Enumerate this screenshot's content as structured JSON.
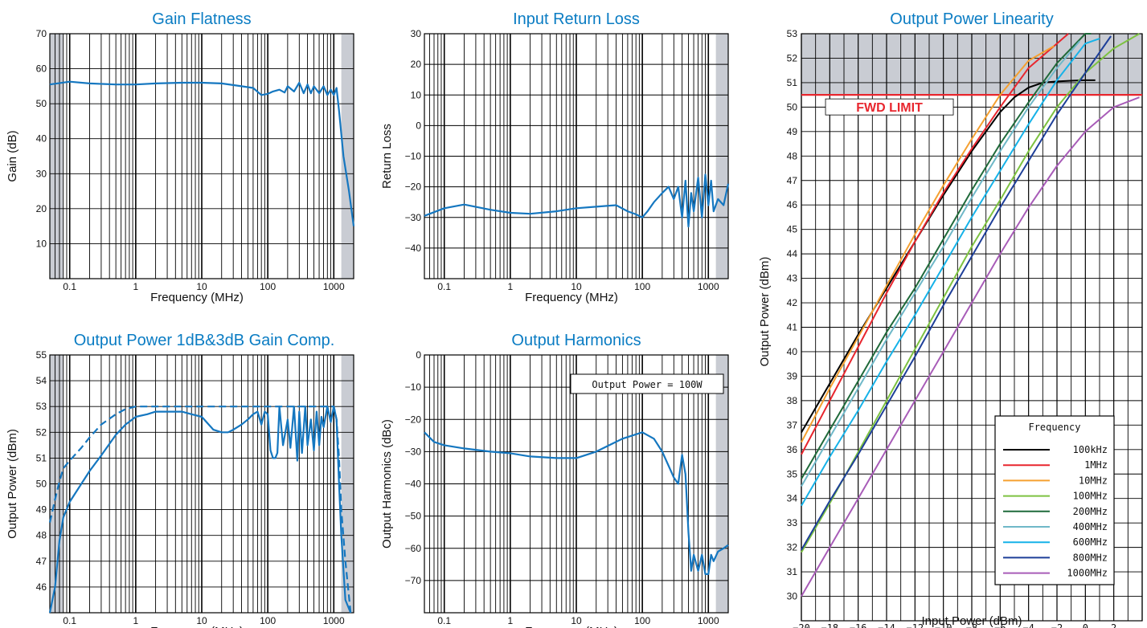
{
  "charts": [
    {
      "title": "Gain Flatness",
      "xlabel": "Frequency (MHz)",
      "ylabel": "Gain (dB)",
      "x_ticks": [
        "0.1",
        "1",
        "10",
        "100",
        "1000"
      ],
      "y_ticks": [
        "10",
        "20",
        "30",
        "40",
        "50",
        "60",
        "70"
      ]
    },
    {
      "title": "Input Return Loss",
      "xlabel": "Frequency (MHz)",
      "ylabel": "Return Loss",
      "x_ticks": [
        "0.1",
        "1",
        "10",
        "100",
        "1000"
      ],
      "y_ticks": [
        "30",
        "20",
        "10",
        "0",
        "−10",
        "−20",
        "−30",
        "−40"
      ]
    },
    {
      "title": "Output Power Linearity",
      "xlabel": "Input Power (dBm)",
      "ylabel": "Output Power (dBm)",
      "x_ticks": [
        "−20",
        "−18",
        "−16",
        "−14",
        "−12",
        "−10",
        "−8",
        "−6",
        "−4",
        "−2",
        "0",
        "2"
      ],
      "y_ticks": [
        "30",
        "31",
        "32",
        "33",
        "34",
        "35",
        "36",
        "37",
        "38",
        "39",
        "40",
        "41",
        "42",
        "43",
        "44",
        "45",
        "46",
        "47",
        "48",
        "49",
        "50",
        "51",
        "52",
        "53"
      ],
      "annotation": "FWD LIMIT",
      "legend_title": "Frequency"
    },
    {
      "title": "Output Power 1dB&3dB Gain Comp.",
      "xlabel": "Frequency (MHz)",
      "ylabel": "Output Power (dBm)",
      "x_ticks": [
        "0.1",
        "1",
        "10",
        "100",
        "1000"
      ],
      "y_ticks": [
        "46",
        "47",
        "48",
        "49",
        "50",
        "51",
        "52",
        "53",
        "54",
        "55"
      ]
    },
    {
      "title": "Output Harmonics",
      "xlabel": "Frequency (MHz)",
      "ylabel": "Output Harmonics (dBc)",
      "x_ticks": [
        "0.1",
        "1",
        "10",
        "100",
        "1000"
      ],
      "y_ticks": [
        "0",
        "−10",
        "−20",
        "−30",
        "−40",
        "−50",
        "−60",
        "−70"
      ],
      "annotation": "Output Power = 100W"
    }
  ],
  "chart_data": [
    {
      "type": "line",
      "title": "Gain Flatness",
      "xlabel": "Frequency (MHz)",
      "ylabel": "Gain (dB)",
      "x_scale": "log",
      "xlim": [
        0.05,
        2000
      ],
      "ylim": [
        0,
        70
      ],
      "shaded_x_ranges": [
        [
          0.05,
          0.08
        ],
        [
          1300,
          2000
        ]
      ],
      "grid": true,
      "color": "#1577c0",
      "series": [
        {
          "x": [
            0.05,
            0.1,
            0.2,
            0.5,
            1,
            2,
            5,
            10,
            20,
            40,
            60,
            80,
            100,
            120,
            150,
            180,
            200,
            250,
            300,
            350,
            400,
            450,
            500,
            600,
            700,
            800,
            900,
            1000,
            1100,
            1200,
            1400,
            1700,
            2000
          ],
          "y": [
            55.5,
            56.3,
            55.8,
            55.5,
            55.5,
            55.8,
            56,
            56,
            55.8,
            55,
            54.5,
            52.5,
            52.8,
            53.5,
            54,
            53.2,
            55,
            53.5,
            56,
            53,
            55.5,
            53,
            55,
            53,
            55,
            52.5,
            54,
            52.5,
            54.5,
            48,
            35,
            25,
            15
          ]
        }
      ]
    },
    {
      "type": "line",
      "title": "Input Return Loss",
      "xlabel": "Frequency (MHz)",
      "ylabel": "Return Loss",
      "x_scale": "log",
      "xlim": [
        0.05,
        2000
      ],
      "ylim": [
        -50,
        30
      ],
      "shaded_x_ranges": [
        [
          1300,
          2000
        ]
      ],
      "grid": true,
      "color": "#1577c0",
      "series": [
        {
          "x": [
            0.05,
            0.1,
            0.2,
            0.5,
            1,
            2,
            5,
            10,
            20,
            40,
            60,
            80,
            100,
            120,
            150,
            200,
            250,
            300,
            350,
            400,
            450,
            500,
            550,
            600,
            700,
            800,
            900,
            1000,
            1100,
            1200,
            1400,
            1700,
            2000
          ],
          "y": [
            -29.5,
            -27,
            -25.8,
            -27.5,
            -28.5,
            -28.8,
            -28,
            -27,
            -26.5,
            -26,
            -28,
            -29,
            -30,
            -28,
            -25,
            -22,
            -20,
            -24,
            -20,
            -30,
            -18,
            -33,
            -22,
            -28,
            -17,
            -30,
            -16,
            -26,
            -18,
            -28,
            -24,
            -26,
            -19
          ]
        }
      ]
    },
    {
      "type": "line",
      "title": "Output Power Linearity",
      "xlabel": "Input Power (dBm)",
      "ylabel": "Output Power (dBm)",
      "xlim": [
        -20,
        4
      ],
      "ylim": [
        29,
        53
      ],
      "shaded_y_range": [
        50.5,
        53
      ],
      "fwd_limit": 50.5,
      "annotation": "FWD LIMIT",
      "legend_title": "Frequency",
      "legend_position": "bottom-right",
      "grid": true,
      "series": [
        {
          "name": "100kHz",
          "color": "#000000",
          "x": [
            -20,
            -18,
            -16,
            -14,
            -12,
            -10,
            -8,
            -6,
            -5,
            -4,
            -3,
            -2,
            -1,
            0,
            0.7
          ],
          "y": [
            36.7,
            38.7,
            40.7,
            42.6,
            44.5,
            46.4,
            48.2,
            49.8,
            50.4,
            50.8,
            51,
            51.05,
            51.08,
            51.1,
            51.1
          ]
        },
        {
          "name": "1MHz",
          "color": "#e8262e",
          "x": [
            -20,
            -18,
            -16,
            -14,
            -12,
            -10,
            -8,
            -6,
            -4,
            -2,
            -1.2
          ],
          "y": [
            35.8,
            38,
            40.2,
            42.4,
            44.5,
            46.5,
            48.3,
            50,
            51.6,
            52.6,
            53
          ]
        },
        {
          "name": "10MHz",
          "color": "#f5a030",
          "x": [
            -20,
            -18,
            -16,
            -14,
            -12,
            -10,
            -8,
            -6,
            -4,
            -2.2
          ],
          "y": [
            36.3,
            38.5,
            40.6,
            42.7,
            44.8,
            46.8,
            48.7,
            50.5,
            51.9,
            52.5
          ]
        },
        {
          "name": "100MHz",
          "color": "#7dc241",
          "x": [
            -20,
            -18,
            -16,
            -14,
            -12,
            -10,
            -8,
            -6,
            -4,
            -2,
            0,
            2,
            3.8
          ],
          "y": [
            31.8,
            33.8,
            35.9,
            38,
            40.1,
            42.2,
            44.3,
            46.2,
            48.2,
            50,
            51.4,
            52.4,
            53
          ]
        },
        {
          "name": "200MHz",
          "color": "#1f6a3a",
          "x": [
            -20,
            -18,
            -16,
            -14,
            -12,
            -10,
            -8,
            -6,
            -4,
            -2,
            0,
            0.4
          ],
          "y": [
            34.8,
            36.8,
            38.8,
            40.8,
            42.6,
            44.6,
            46.6,
            48.5,
            50.2,
            51.8,
            53,
            53
          ]
        },
        {
          "name": "400MHz",
          "color": "#6fb8c8",
          "x": [
            -20,
            -18,
            -16,
            -14,
            -12,
            -10,
            -8,
            -6,
            -4,
            -2,
            -0.4
          ],
          "y": [
            34.5,
            36.5,
            38.5,
            40.5,
            42.4,
            44.3,
            46.3,
            48.2,
            50,
            51.6,
            52.7
          ]
        },
        {
          "name": "600MHz",
          "color": "#16b2e8",
          "x": [
            -20,
            -18,
            -16,
            -14,
            -12,
            -10,
            -8,
            -6,
            -4,
            -2,
            0,
            1
          ],
          "y": [
            33.7,
            35.7,
            37.6,
            39.6,
            41.5,
            43.5,
            45.5,
            47.4,
            49.3,
            51.1,
            52.6,
            52.8
          ]
        },
        {
          "name": "800MHz",
          "color": "#1e3f99",
          "x": [
            -20,
            -18,
            -16,
            -14,
            -12,
            -10,
            -8,
            -6,
            -4,
            -2,
            0,
            1.8
          ],
          "y": [
            31.9,
            33.9,
            35.8,
            37.8,
            39.8,
            41.9,
            43.9,
            45.9,
            47.8,
            49.7,
            51.4,
            52.9
          ]
        },
        {
          "name": "1000MHz",
          "color": "#a85cb8",
          "x": [
            -20,
            -18,
            -16,
            -14,
            -12,
            -10,
            -8,
            -6,
            -4,
            -2,
            0,
            2,
            3.8
          ],
          "y": [
            30,
            32,
            34,
            36,
            38,
            40,
            42,
            44,
            45.9,
            47.6,
            49,
            50,
            50.4
          ]
        }
      ]
    },
    {
      "type": "line",
      "title": "Output Power 1dB&3dB Gain Comp.",
      "xlabel": "Frequency (MHz)",
      "ylabel": "Output Power (dBm)",
      "x_scale": "log",
      "xlim": [
        0.05,
        2000
      ],
      "ylim": [
        45,
        55
      ],
      "shaded_x_ranges": [
        [
          0.05,
          0.08
        ],
        [
          1300,
          2000
        ]
      ],
      "grid": true,
      "color": "#1577c0",
      "series": [
        {
          "style": "solid",
          "x": [
            0.05,
            0.06,
            0.07,
            0.08,
            0.1,
            0.15,
            0.2,
            0.3,
            0.5,
            0.7,
            1,
            1.5,
            2,
            3,
            5,
            7,
            10,
            15,
            20,
            25,
            30,
            40,
            50,
            60,
            70,
            80,
            90,
            100,
            110,
            120,
            130,
            140,
            150,
            170,
            200,
            220,
            250,
            280,
            300,
            330,
            370,
            400,
            450,
            500,
            550,
            600,
            650,
            700,
            800,
            900,
            1000,
            1100,
            1200,
            1300,
            1500,
            1800
          ],
          "y": [
            45,
            46,
            47.8,
            48.7,
            49.3,
            50,
            50.5,
            51.1,
            51.9,
            52.3,
            52.6,
            52.7,
            52.8,
            52.8,
            52.8,
            52.7,
            52.6,
            52.1,
            52,
            52,
            52.1,
            52.3,
            52.5,
            52.7,
            52.8,
            52.3,
            52.8,
            52.7,
            51.3,
            51,
            51,
            51.2,
            53,
            51.5,
            52.5,
            51.4,
            53,
            50.9,
            52.8,
            51.2,
            53,
            51.5,
            52.5,
            51.3,
            52.8,
            51.5,
            52.6,
            52.2,
            53,
            52.4,
            53,
            52.5,
            50,
            48,
            45.5,
            45
          ]
        },
        {
          "style": "dashed",
          "x": [
            0.05,
            0.06,
            0.07,
            0.08,
            0.1,
            0.15,
            0.2,
            0.3,
            0.5,
            0.7,
            1,
            2,
            5,
            10,
            20,
            50,
            100,
            200,
            500,
            1000,
            1100,
            1200,
            1300,
            1500,
            1800
          ],
          "y": [
            48.5,
            49.4,
            50.1,
            50.6,
            50.9,
            51.4,
            51.8,
            52.3,
            52.7,
            52.9,
            53,
            53,
            53,
            53,
            53,
            53,
            53,
            53,
            53,
            53,
            52.5,
            51,
            49,
            47,
            45
          ]
        }
      ]
    },
    {
      "type": "line",
      "title": "Output Harmonics",
      "xlabel": "Frequency (MHz)",
      "ylabel": "Output Harmonics (dBc)",
      "x_scale": "log",
      "xlim": [
        0.05,
        2000
      ],
      "ylim": [
        -80,
        0
      ],
      "shaded_x_ranges": [
        [
          1300,
          2000
        ]
      ],
      "annotation": "Output Power = 100W",
      "grid": true,
      "color": "#1577c0",
      "series": [
        {
          "x": [
            0.05,
            0.07,
            0.1,
            0.2,
            0.5,
            1,
            2,
            5,
            10,
            20,
            50,
            100,
            150,
            200,
            300,
            350,
            400,
            450,
            500,
            550,
            600,
            700,
            800,
            900,
            1000,
            1100,
            1200,
            1400,
            1700,
            2000
          ],
          "y": [
            -24,
            -27,
            -28,
            -29,
            -30,
            -30.5,
            -31.5,
            -32,
            -32,
            -30,
            -26,
            -24,
            -26,
            -30,
            -38,
            -40,
            -31,
            -37,
            -55,
            -67,
            -62,
            -67,
            -62,
            -68,
            -68,
            -62,
            -64,
            -61,
            -60,
            -59
          ]
        }
      ]
    }
  ]
}
